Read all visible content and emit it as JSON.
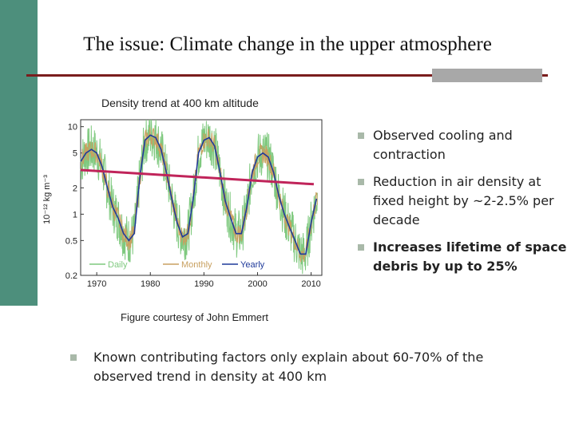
{
  "slide": {
    "title": "The issue: Climate change in the upper atmosphere",
    "chart_caption": "Density trend at 400 km altitude",
    "figure_credit": "Figure courtesy of John Emmert",
    "bullets": [
      "Observed cooling and contraction",
      "Reduction in air density at fixed height by ~2-2.5% per decade",
      "Increases lifetime of space debris by up to 25%"
    ],
    "bottom_bullet": "Known contributing factors only explain about 60-70% of the observed trend in density at 400 km"
  },
  "colors": {
    "side_band": "#4d8f7c",
    "rule": "#7a1d1d",
    "daily": "#7fc97f",
    "monthly": "#c8a060",
    "yearly": "#1f3a9a",
    "trend": "#c0245a"
  },
  "chart_data": {
    "type": "line",
    "ylabel": "10⁻¹² kg m⁻³",
    "xlim": [
      1967,
      2012
    ],
    "ylim": [
      0.2,
      12
    ],
    "yscale": "log",
    "xticks": [
      1970,
      1980,
      1990,
      2000,
      2010
    ],
    "yticks": [
      10,
      5,
      2,
      1,
      0.5,
      0.2
    ],
    "legend": [
      "Daily",
      "Monthly",
      "Yearly"
    ],
    "legend_position": "bottom",
    "series": [
      {
        "name": "Yearly",
        "x": [
          1967,
          1968,
          1969,
          1970,
          1971,
          1972,
          1973,
          1974,
          1975,
          1976,
          1977,
          1978,
          1979,
          1980,
          1981,
          1982,
          1983,
          1984,
          1985,
          1986,
          1987,
          1988,
          1989,
          1990,
          1991,
          1992,
          1993,
          1994,
          1995,
          1996,
          1997,
          1998,
          1999,
          2000,
          2001,
          2002,
          2003,
          2004,
          2005,
          2006,
          2007,
          2008,
          2009,
          2010,
          2011
        ],
        "y": [
          4,
          5,
          5.5,
          5,
          3.5,
          2,
          1.2,
          0.9,
          0.6,
          0.5,
          0.6,
          2.5,
          7,
          8,
          7.5,
          5.5,
          3,
          1.5,
          0.8,
          0.55,
          0.6,
          1.5,
          5,
          7,
          7.5,
          6,
          3,
          1.4,
          0.9,
          0.6,
          0.6,
          1.2,
          3,
          4.5,
          5,
          4.5,
          3,
          1.6,
          1,
          0.7,
          0.5,
          0.35,
          0.35,
          0.8,
          1.5
        ]
      },
      {
        "name": "Trend",
        "x": [
          1967,
          2010.5
        ],
        "y": [
          3.2,
          2.2
        ]
      }
    ]
  }
}
